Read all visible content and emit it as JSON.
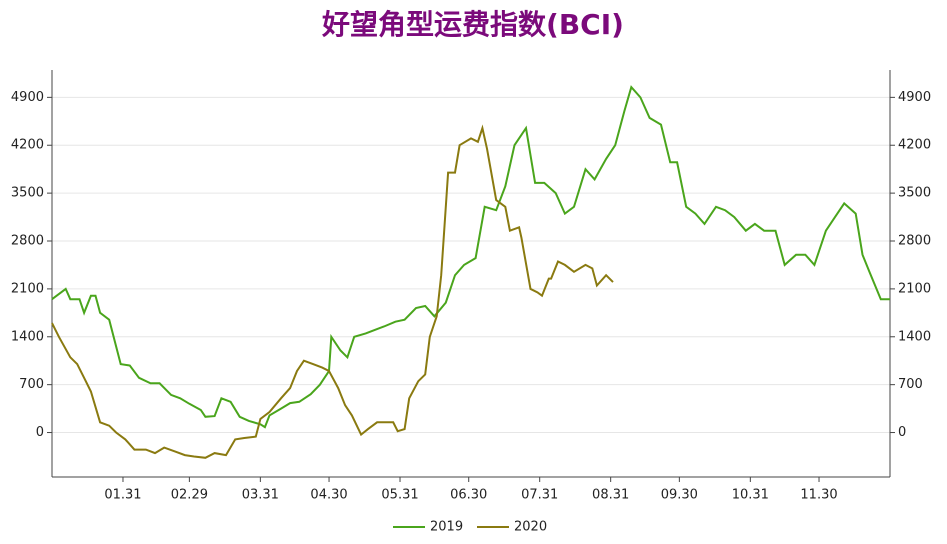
{
  "chart_data": {
    "type": "line",
    "title": "好望角型运费指数(BCI)",
    "xlim": [
      0,
      366
    ],
    "xticks": [
      {
        "value": 31,
        "label": "01.31"
      },
      {
        "value": 60,
        "label": "02.29"
      },
      {
        "value": 91,
        "label": "03.31"
      },
      {
        "value": 121,
        "label": "04.30"
      },
      {
        "value": 152,
        "label": "05.31"
      },
      {
        "value": 182,
        "label": "06.30"
      },
      {
        "value": 213,
        "label": "07.31"
      },
      {
        "value": 244,
        "label": "08.31"
      },
      {
        "value": 274,
        "label": "09.30"
      },
      {
        "value": 305,
        "label": "10.31"
      },
      {
        "value": 335,
        "label": "11.30"
      }
    ],
    "ylim": [
      -650,
      5300
    ],
    "yticks": [
      0,
      700,
      1400,
      2100,
      2800,
      3500,
      4200,
      4900
    ],
    "grid": true,
    "legend": "bottom",
    "series": [
      {
        "name": "2019",
        "color": "#4aa51c",
        "x": [
          0,
          6,
          8,
          12,
          14,
          17,
          19,
          21,
          25,
          30,
          34,
          38,
          43,
          47,
          52,
          56,
          60,
          65,
          67,
          71,
          74,
          78,
          82,
          86,
          91,
          93,
          95,
          100,
          104,
          108,
          113,
          117,
          121,
          122,
          126,
          129,
          132,
          137,
          141,
          145,
          150,
          154,
          159,
          163,
          167,
          172,
          176,
          180,
          185,
          189,
          194,
          198,
          202,
          207,
          211,
          215,
          220,
          224,
          228,
          233,
          237,
          242,
          246,
          250,
          253,
          257,
          261,
          266,
          270,
          273,
          277,
          281,
          285,
          290,
          294,
          298,
          303,
          307,
          311,
          316,
          320,
          325,
          329,
          333,
          338,
          342,
          346,
          351,
          354,
          357,
          362,
          366
        ],
        "values": [
          1950,
          2100,
          1950,
          1950,
          1750,
          2000,
          2000,
          1750,
          1650,
          1000,
          980,
          800,
          720,
          720,
          550,
          500,
          420,
          330,
          230,
          240,
          500,
          450,
          230,
          170,
          120,
          80,
          250,
          350,
          430,
          450,
          560,
          700,
          900,
          1400,
          1200,
          1100,
          1400,
          1450,
          1500,
          1550,
          1620,
          1650,
          1820,
          1850,
          1700,
          1900,
          2300,
          2450,
          2550,
          3300,
          3250,
          3600,
          4200,
          4450,
          3650,
          3650,
          3500,
          3200,
          3300,
          3850,
          3700,
          4000,
          4200,
          4700,
          5050,
          4900,
          4600,
          4500,
          3950,
          3950,
          3300,
          3200,
          3050,
          3300,
          3250,
          3150,
          2950,
          3050,
          2950,
          2950,
          2450,
          2600,
          2600,
          2450,
          2950,
          3150,
          3350,
          3200,
          2600,
          2350,
          1950,
          1950
        ]
      },
      {
        "name": "2020",
        "color": "#8a7a10",
        "x": [
          0,
          3,
          8,
          11,
          14,
          17,
          21,
          25,
          28,
          32,
          36,
          41,
          45,
          49,
          54,
          58,
          62,
          67,
          71,
          76,
          80,
          84,
          89,
          91,
          95,
          100,
          104,
          107,
          110,
          114,
          118,
          121,
          125,
          128,
          131,
          135,
          138,
          142,
          145,
          149,
          151,
          154,
          156,
          160,
          163,
          165,
          168,
          170,
          173,
          176,
          178,
          183,
          186,
          188,
          190,
          194,
          198,
          200,
          204,
          205,
          209,
          212,
          214,
          217,
          218,
          221,
          224,
          228,
          233,
          236,
          238,
          242,
          245
        ],
        "values": [
          1600,
          1400,
          1100,
          1000,
          800,
          600,
          150,
          100,
          0,
          -100,
          -250,
          -250,
          -300,
          -220,
          -280,
          -330,
          -350,
          -370,
          -300,
          -330,
          -100,
          -80,
          -60,
          200,
          300,
          500,
          650,
          900,
          1050,
          1000,
          950,
          900,
          650,
          400,
          250,
          -30,
          50,
          150,
          150,
          150,
          20,
          50,
          500,
          750,
          850,
          1400,
          1700,
          2300,
          3800,
          3800,
          4200,
          4300,
          4250,
          4450,
          4150,
          3400,
          3300,
          2950,
          3000,
          2850,
          2100,
          2050,
          2000,
          2250,
          2250,
          2500,
          2450,
          2350,
          2450,
          2400,
          2150,
          2300,
          2200
        ]
      }
    ]
  }
}
